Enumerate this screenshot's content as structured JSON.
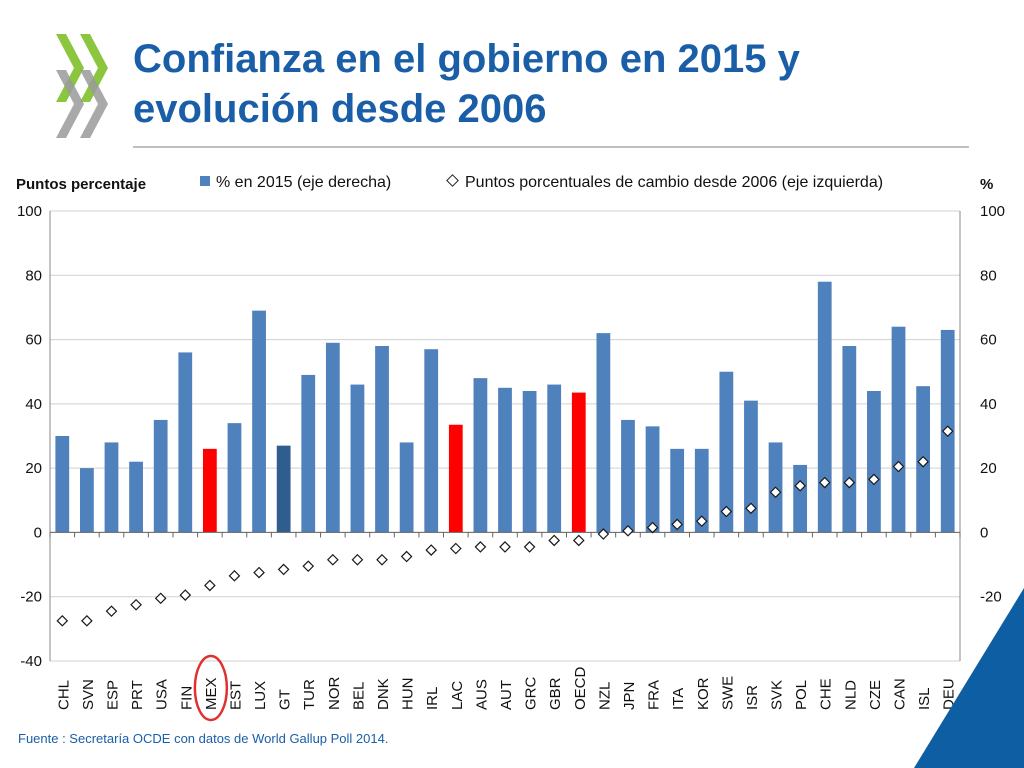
{
  "slide": {
    "title": "Confianza en el gobierno en 2015 y evolución desde 2006",
    "source": "Fuente : Secretaría OCDE con datos de World Gallup Poll 2014."
  },
  "colors": {
    "title": "#1a5ea8",
    "bar_default": "#4f81bd",
    "bar_highlight": "#ff0000",
    "bar_dark": "#2f5d8e",
    "logo_green": "#8cc63f",
    "logo_grey": "#9a9a9a",
    "corner": "#0d5ea3",
    "circle": "#e03030"
  },
  "chart_data": {
    "type": "bar",
    "left_axis_label": "Puntos percentaje",
    "right_axis_label": "%",
    "legend": {
      "bars": "% en 2015 (eje derecha)",
      "markers": "Puntos porcentuales de cambio desde 2006 (eje izquierda)"
    },
    "ylim": [
      -40,
      100
    ],
    "yticks": [
      -40,
      -20,
      0,
      20,
      40,
      60,
      80,
      100
    ],
    "categories": [
      "CHL",
      "SVN",
      "ESP",
      "PRT",
      "USA",
      "FIN",
      "MEX",
      "EST",
      "LUX",
      "GT",
      "TUR",
      "NOR",
      "BEL",
      "DNK",
      "HUN",
      "IRL",
      "LAC",
      "AUS",
      "AUT",
      "GRC",
      "GBR",
      "OECD",
      "NZL",
      "JPN",
      "FRA",
      "ITA",
      "KOR",
      "SWE",
      "ISR",
      "SVK",
      "POL",
      "CHE",
      "NLD",
      "CZE",
      "CAN",
      "ISL",
      "DEU"
    ],
    "series": [
      {
        "name": "% en 2015 (eje derecha)",
        "kind": "bar",
        "values": [
          30,
          20,
          28,
          22,
          35,
          56,
          26,
          34,
          69,
          27,
          49,
          59,
          46,
          58,
          28,
          57,
          33.5,
          48,
          45,
          44,
          46,
          43.5,
          62,
          35,
          33,
          26,
          26,
          50,
          41,
          28,
          21,
          78,
          58,
          44,
          64,
          45.5,
          63
        ],
        "highlight_red": [
          "MEX",
          "LAC",
          "OECD"
        ],
        "highlight_dark": [
          "GT"
        ]
      },
      {
        "name": "Puntos porcentuales de cambio desde 2006 (eje izquierda)",
        "kind": "marker",
        "values": [
          -27.5,
          -27.5,
          -24.5,
          -22.5,
          -20.5,
          -19.5,
          -16.5,
          -13.5,
          -12.5,
          -11.5,
          -10.5,
          -8.5,
          -8.5,
          -8.5,
          -7.5,
          -5.5,
          -5,
          -4.5,
          -4.5,
          -4.5,
          -2.5,
          -2.5,
          -0.5,
          0.5,
          1.5,
          2.5,
          3.5,
          6.5,
          7.5,
          12.5,
          14.5,
          15.5,
          15.5,
          16.5,
          20.5,
          22,
          31.5
        ]
      }
    ],
    "circled_category": "MEX"
  }
}
